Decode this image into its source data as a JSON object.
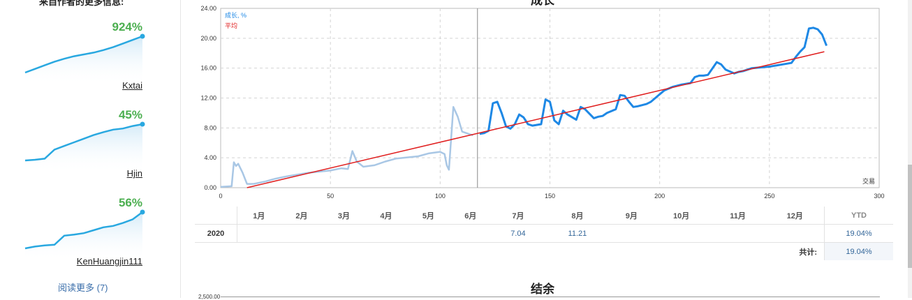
{
  "sidebar": {
    "heading": "来自作者的更多信息:",
    "authors": [
      {
        "percent": "924%",
        "name": "Kxtai",
        "trend": [
          0.0,
          0.1,
          0.2,
          0.3,
          0.38,
          0.45,
          0.5,
          0.55,
          0.62,
          0.7,
          0.8,
          0.9,
          1.0
        ]
      },
      {
        "percent": "45%",
        "name": "Hjin",
        "trend": [
          0.0,
          0.02,
          0.05,
          0.3,
          0.4,
          0.5,
          0.6,
          0.7,
          0.78,
          0.85,
          0.88,
          0.95,
          1.0
        ]
      },
      {
        "percent": "56%",
        "name": "KenHuangjin111",
        "trend": [
          0.0,
          0.05,
          0.08,
          0.1,
          0.35,
          0.38,
          0.42,
          0.5,
          0.58,
          0.62,
          0.7,
          0.8,
          1.0
        ]
      }
    ],
    "read_more": "阅读更多 (7)"
  },
  "chart_title": "成长",
  "chart_data": {
    "type": "line",
    "title": "成长",
    "xlabel": "交易",
    "ylabel": "",
    "xlim": [
      0,
      300
    ],
    "ylim": [
      0,
      24
    ],
    "x_ticks": [
      "0",
      "50",
      "100",
      "150",
      "200",
      "250",
      "300"
    ],
    "y_ticks": [
      "0.00",
      "4.00",
      "8.00",
      "12.00",
      "16.00",
      "20.00",
      "24.00"
    ],
    "vertical_marker_x": 117,
    "grid": true,
    "legend": {
      "placement": "top-left",
      "entries": [
        "成长, %",
        "平均"
      ]
    },
    "series": [
      {
        "name": "成长, %",
        "color": "#1e88e5",
        "x": [
          0,
          5,
          6,
          7,
          8,
          10,
          12,
          15,
          20,
          25,
          30,
          40,
          50,
          55,
          58,
          60,
          62,
          65,
          70,
          75,
          80,
          90,
          95,
          100,
          102,
          103,
          104,
          106,
          108,
          110,
          115,
          118,
          120,
          122,
          124,
          126,
          128,
          130,
          132,
          134,
          136,
          138,
          140,
          142,
          146,
          148,
          150,
          152,
          154,
          156,
          158,
          162,
          164,
          166,
          170,
          172,
          174,
          176,
          180,
          182,
          184,
          186,
          188,
          190,
          194,
          196,
          198,
          200,
          202,
          206,
          210,
          214,
          216,
          218,
          220,
          222,
          226,
          228,
          230,
          234,
          236,
          238,
          242,
          246,
          250,
          254,
          256,
          260,
          262,
          264,
          266,
          268,
          270,
          272,
          274,
          276
        ],
        "y": [
          0.1,
          0.2,
          3.4,
          2.9,
          3.2,
          2.0,
          0.5,
          0.5,
          0.8,
          1.2,
          1.5,
          2.0,
          2.3,
          2.6,
          2.5,
          4.9,
          3.5,
          2.8,
          3.0,
          3.5,
          3.9,
          4.2,
          4.6,
          4.8,
          4.5,
          3.0,
          2.4,
          10.8,
          9.5,
          7.5,
          7.0,
          7.2,
          7.3,
          7.6,
          11.3,
          11.5,
          10.0,
          8.2,
          7.9,
          8.5,
          9.8,
          9.4,
          8.5,
          8.3,
          8.5,
          11.8,
          11.5,
          9.0,
          8.5,
          10.3,
          9.8,
          9.1,
          10.8,
          10.5,
          9.3,
          9.5,
          9.6,
          10.0,
          10.5,
          12.4,
          12.3,
          11.5,
          10.8,
          10.9,
          11.2,
          11.5,
          12.0,
          12.5,
          13.0,
          13.5,
          13.8,
          14.0,
          14.8,
          15.0,
          15.0,
          15.1,
          16.8,
          16.5,
          15.8,
          15.3,
          15.5,
          15.6,
          16.0,
          16.1,
          16.2,
          16.4,
          16.5,
          16.7,
          17.5,
          18.2,
          18.8,
          21.3,
          21.4,
          21.2,
          20.5,
          19.0
        ],
        "note_split_x": 117
      },
      {
        "name": "平均",
        "color": "#e01e1e",
        "x": [
          12,
          275
        ],
        "y": [
          0.0,
          18.2
        ]
      }
    ]
  },
  "table": {
    "months": [
      "1月",
      "2月",
      "3月",
      "4月",
      "5月",
      "6月",
      "7月",
      "8月",
      "9月",
      "10月",
      "11月",
      "12月"
    ],
    "ytd_header": "YTD",
    "rows": [
      {
        "year": "2020",
        "values": [
          "",
          "",
          "",
          "",
          "",
          "",
          "7.04",
          "11.21",
          "",
          "",
          "",
          ""
        ],
        "ytd": "19.04%"
      }
    ],
    "total_label": "共计:",
    "total_value": "19.04%"
  },
  "balance": {
    "title": "结余",
    "first_tick": "2,500.00"
  },
  "colors": {
    "accent_green": "#4caf50",
    "spark_line": "#29a8e0",
    "growth_line": "#1e88e5",
    "growth_line_early": "#a9c7e5",
    "average_line": "#e01e1e",
    "link": "#3a6eaa"
  }
}
